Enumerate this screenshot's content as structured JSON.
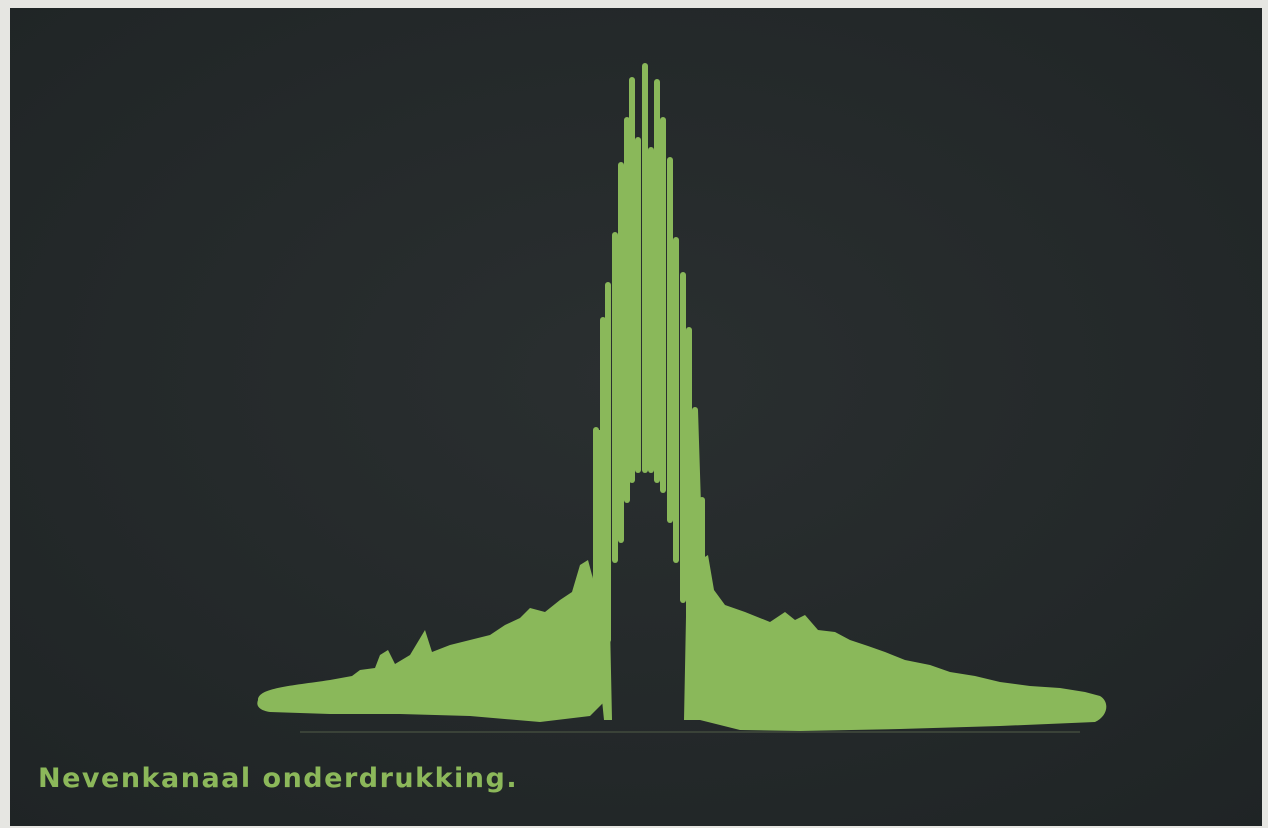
{
  "caption": "Nevenkanaal onderdrukking."
}
